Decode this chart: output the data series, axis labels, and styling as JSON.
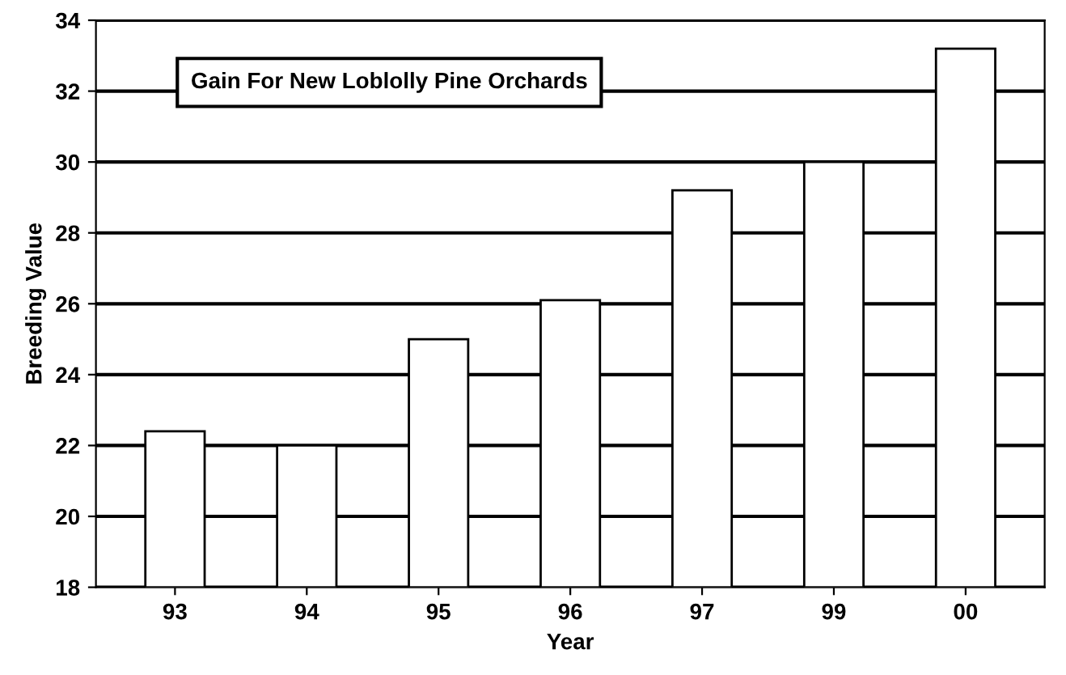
{
  "chart_data": {
    "type": "bar",
    "title": "Gain For New Loblolly Pine Orchards",
    "xlabel": "Year",
    "ylabel": "Breeding Value",
    "categories": [
      "93",
      "94",
      "95",
      "96",
      "97",
      "99",
      "00"
    ],
    "values": [
      22.4,
      22.0,
      25.0,
      26.1,
      29.2,
      30.0,
      33.2
    ],
    "color": "#ffffff",
    "ylim": [
      18,
      34
    ],
    "yticks": [
      18,
      20,
      22,
      24,
      26,
      28,
      30,
      32,
      34
    ],
    "grid": "y"
  }
}
